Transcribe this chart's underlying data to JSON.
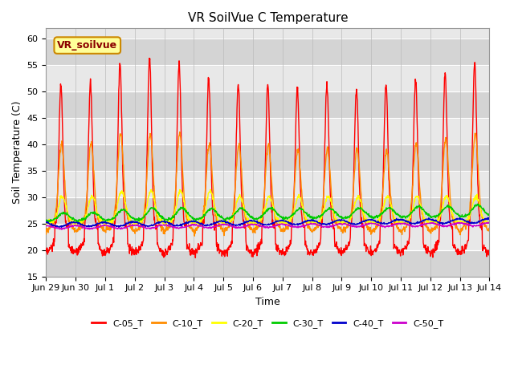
{
  "title": "VR SoilVue C Temperature",
  "xlabel": "Time",
  "ylabel": "Soil Temperature (C)",
  "ylim": [
    15,
    62
  ],
  "yticks": [
    15,
    20,
    25,
    30,
    35,
    40,
    45,
    50,
    55,
    60
  ],
  "series": [
    "C-05_T",
    "C-10_T",
    "C-20_T",
    "C-30_T",
    "C-40_T",
    "C-50_T"
  ],
  "colors": [
    "#ff0000",
    "#ff8c00",
    "#ffff00",
    "#00cc00",
    "#0000cc",
    "#cc00cc"
  ],
  "annotation_text": "VR_soilvue",
  "annotation_bg": "#ffff99",
  "annotation_border": "#cc8800",
  "facecolor": "#e8e8e8",
  "n_days": 16,
  "xtick_labels": [
    "Jun 29",
    "Jun 30",
    "Jul 1",
    "Jul 2",
    "Jul 3",
    "Jul 4",
    "Jul 5",
    "Jul 6",
    "Jul 7",
    "Jul 8",
    "Jul 9",
    "Jul 10",
    "Jul 11",
    "Jul 12",
    "Jul 13",
    "Jul 14"
  ],
  "line_width": 1.0,
  "title_fontsize": 11,
  "axis_fontsize": 9,
  "tick_fontsize": 8,
  "legend_fontsize": 8,
  "band_colors": [
    "#d4d4d4",
    "#e8e8e8"
  ],
  "white_line_color": "#ffffff"
}
